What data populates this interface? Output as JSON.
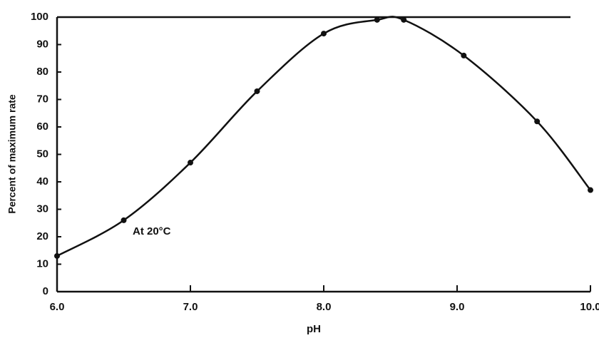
{
  "chart_data": {
    "type": "line",
    "xlabel": "pH",
    "ylabel": "Percent of maximum rate",
    "annotation": "At 20°C",
    "x": [
      6.0,
      6.5,
      7.0,
      7.5,
      8.0,
      8.4,
      8.6,
      9.05,
      9.6,
      10.0
    ],
    "series": [
      {
        "color": "#111111",
        "values": [
          13,
          26,
          47,
          73,
          94,
          99,
          99,
          86,
          62,
          37
        ]
      }
    ],
    "xlim": [
      6.0,
      10.0
    ],
    "xticks": [
      {
        "value": 6.0,
        "label": "6.0"
      },
      {
        "value": 7.0,
        "label": "7.0"
      },
      {
        "value": 8.0,
        "label": "8.0"
      },
      {
        "value": 9.0,
        "label": "9.0"
      },
      {
        "value": 10.0,
        "label": "10.0"
      }
    ],
    "ylim": [
      0,
      100
    ],
    "yticks": [
      0,
      10,
      20,
      30,
      40,
      50,
      60,
      70,
      80,
      90,
      100
    ],
    "grid": false
  }
}
